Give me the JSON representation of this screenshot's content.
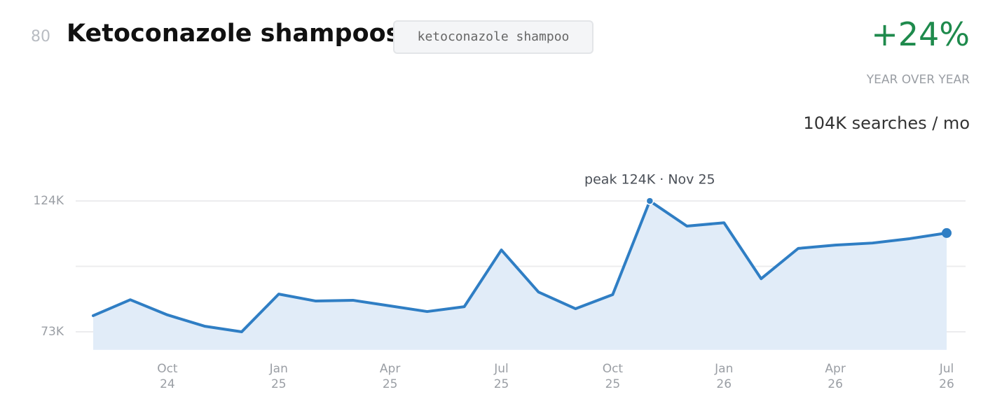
{
  "header": {
    "rank": "80",
    "title": "Ketoconazole shampoos",
    "keyword": "ketoconazole shampoo",
    "change": "+24%",
    "change_label": "YEAR OVER YEAR",
    "volume": "104K searches / mo"
  },
  "chart_data": {
    "type": "line",
    "annotation": "peak 124K · Nov 25",
    "categories": [
      null,
      null,
      "Oct\n24",
      null,
      null,
      "Jan\n25",
      null,
      null,
      "Apr\n25",
      null,
      null,
      "Jul\n25",
      null,
      null,
      "Oct\n25",
      null,
      null,
      "Jan\n26",
      null,
      null,
      "Apr\n26",
      null,
      null,
      "Jul\n26"
    ],
    "series": [
      {
        "name": "searches",
        "color": "#2f7ec4",
        "values": [
          79300,
          85500,
          79600,
          75200,
          73000,
          87700,
          85000,
          85300,
          83100,
          80900,
          82800,
          104900,
          88500,
          82000,
          87500,
          124000,
          114200,
          115500,
          93700,
          105500,
          106800,
          107600,
          109300,
          111500
        ]
      }
    ],
    "area_color": "#e1ecf8",
    "ylim": [
      66000,
      131000
    ],
    "yticks": [
      {
        "value": 73000,
        "label": "73K"
      },
      {
        "value": 124000,
        "label": "124K"
      }
    ],
    "ygrid": [
      73000,
      98500,
      124000
    ],
    "grid": true
  }
}
